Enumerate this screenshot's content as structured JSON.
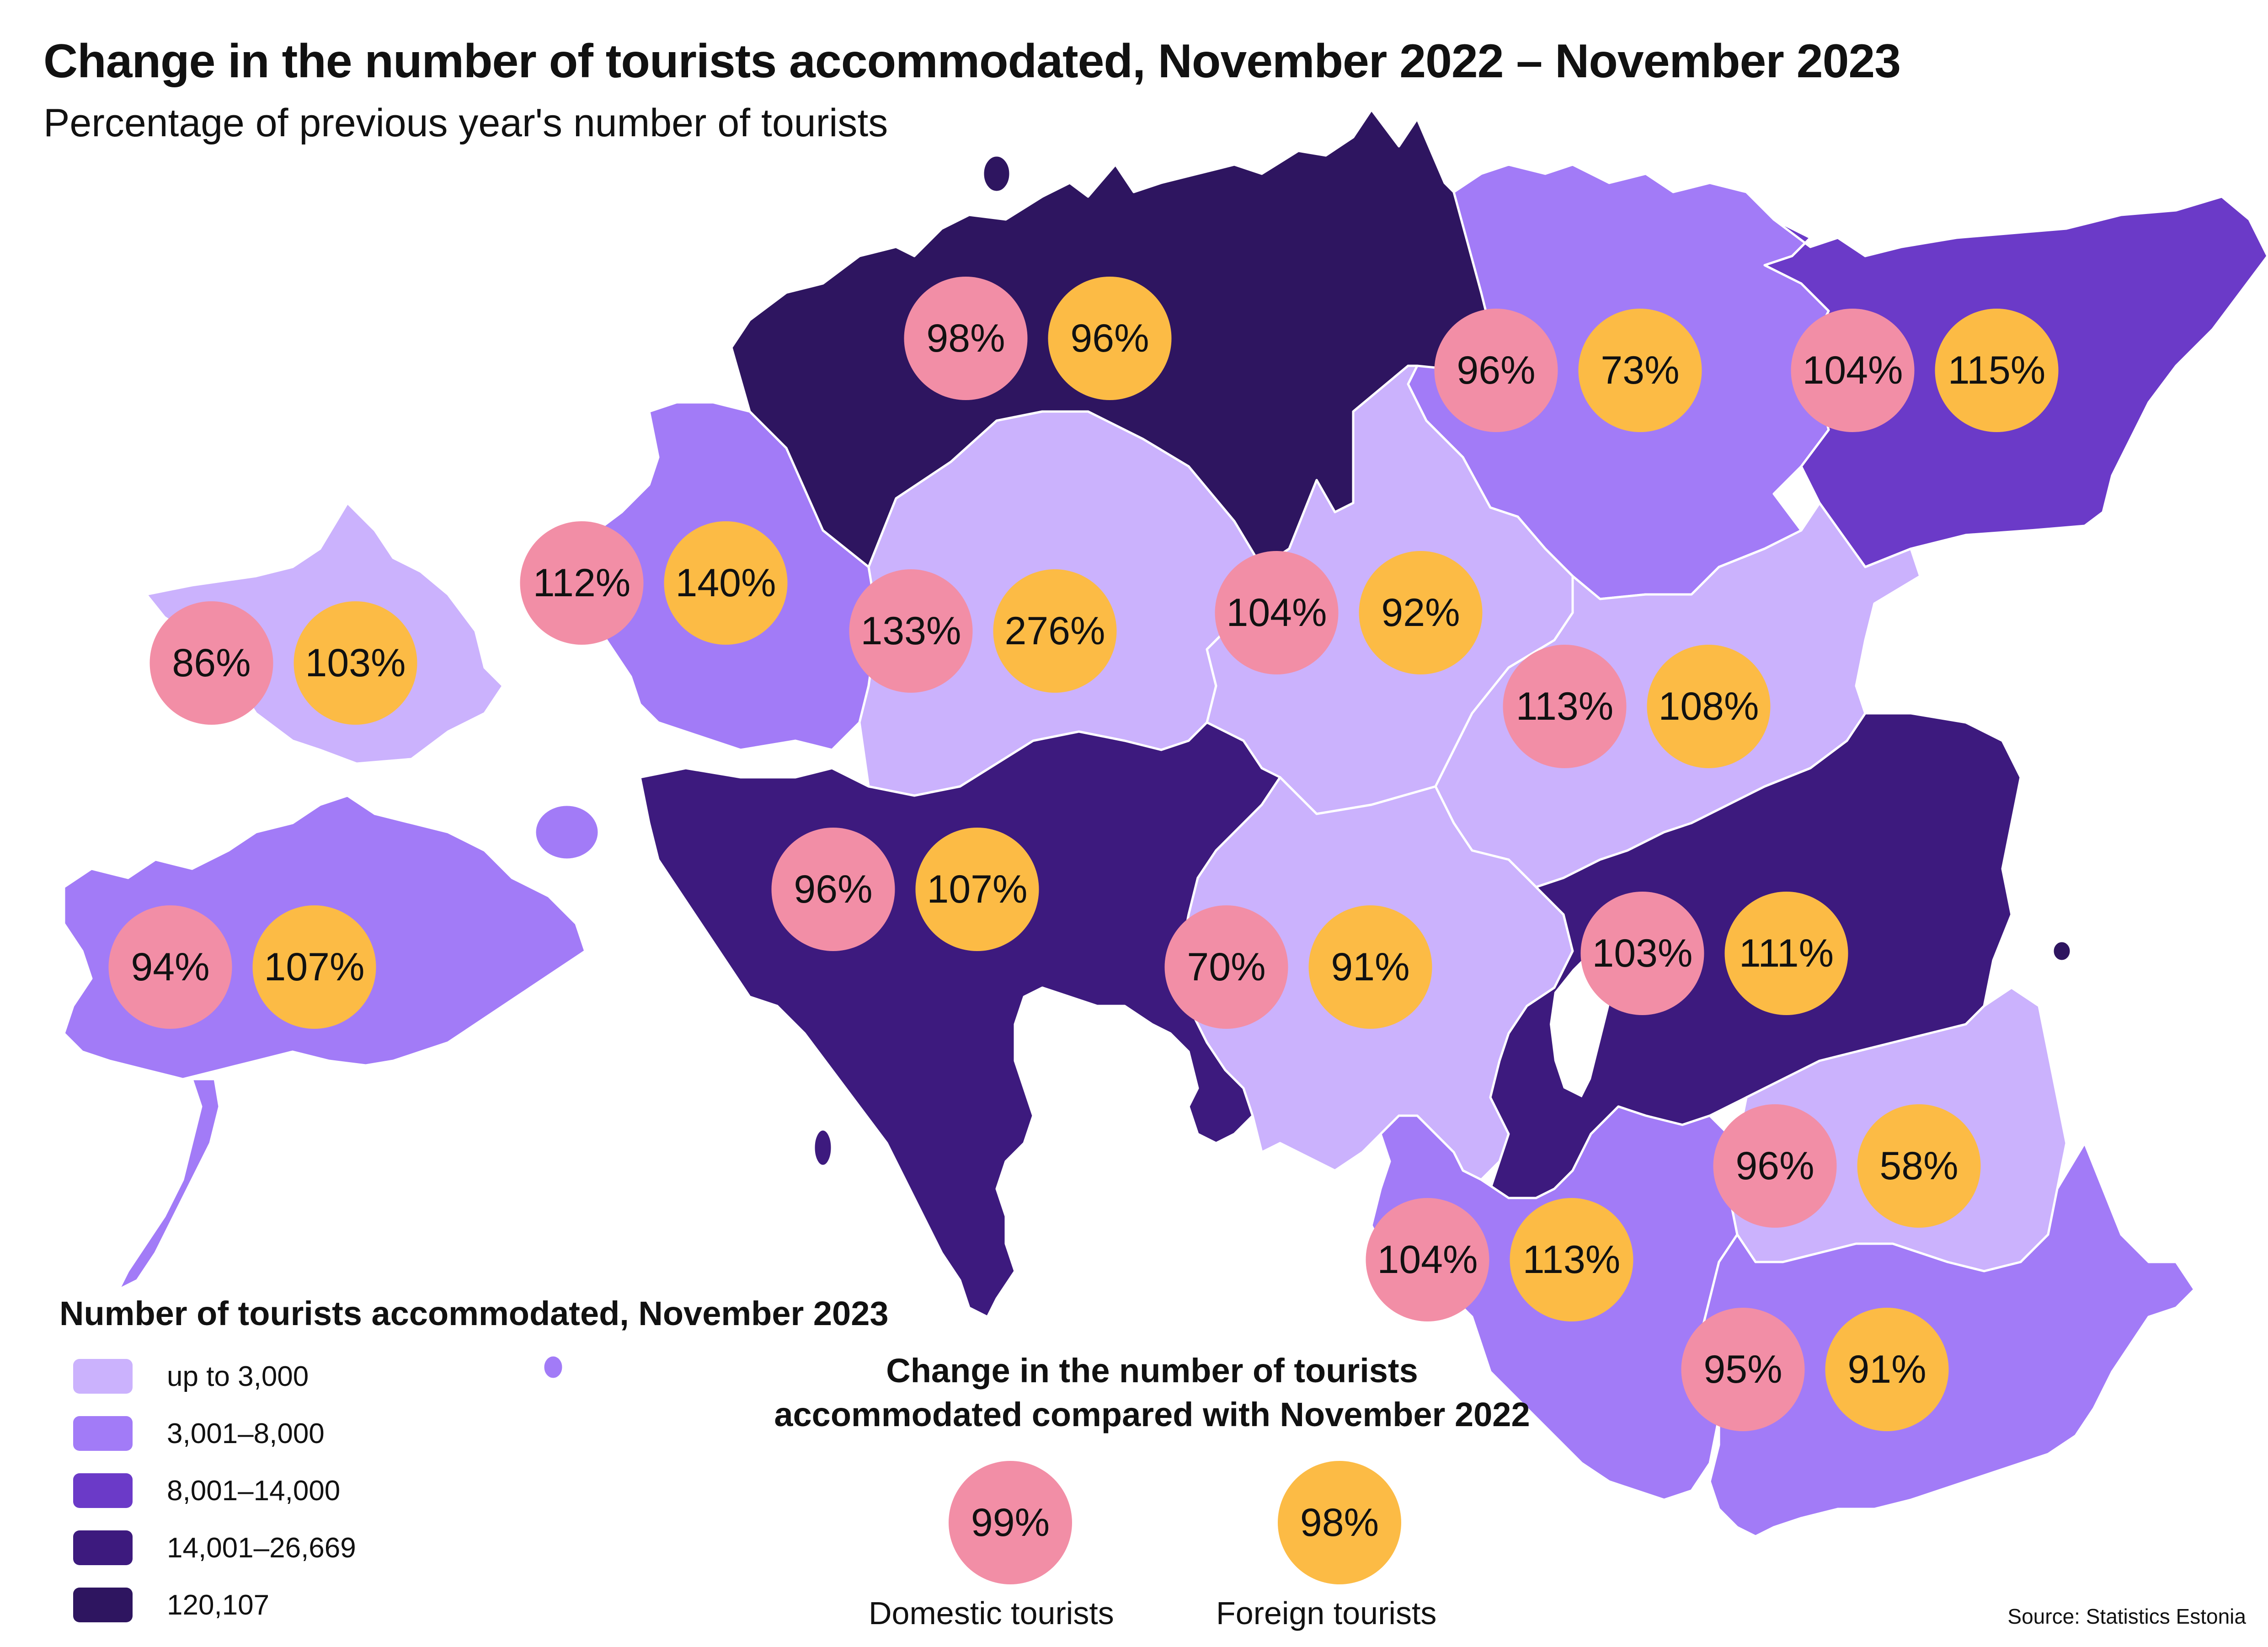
{
  "title": "Change in the number of tourists accommodated, November 2022 – November 2023",
  "subtitle": "Percentage of previous year's number of tourists",
  "colors": {
    "up_to_3000": "#cbb2fd",
    "3001_8000": "#a27bf7",
    "8001_14000": "#6b3ac8",
    "14001_26669": "#3d1a7e",
    "120107": "#2e1560",
    "domestic": "#f28ea6",
    "foreign": "#fcbb45",
    "water": "#ffffff"
  },
  "counties": [
    {
      "class": "120107",
      "domestic": "98%",
      "foreign": "96%"
    },
    {
      "class": "3001_8000",
      "domestic": "96%",
      "foreign": "73%"
    },
    {
      "class": "8001_14000",
      "domestic": "104%",
      "foreign": "115%"
    },
    {
      "class": "up_to_3000",
      "domestic": "86%",
      "foreign": "103%"
    },
    {
      "class": "3001_8000",
      "domestic": "112%",
      "foreign": "140%"
    },
    {
      "class": "up_to_3000",
      "domestic": "133%",
      "foreign": "276%"
    },
    {
      "class": "up_to_3000",
      "domestic": "104%",
      "foreign": "92%"
    },
    {
      "class": "up_to_3000",
      "domestic": "113%",
      "foreign": "108%"
    },
    {
      "class": "3001_8000",
      "domestic": "94%",
      "foreign": "107%"
    },
    {
      "class": "14001_26669",
      "domestic": "96%",
      "foreign": "107%"
    },
    {
      "class": "up_to_3000",
      "domestic": "70%",
      "foreign": "91%"
    },
    {
      "class": "14001_26669",
      "domestic": "103%",
      "foreign": "111%"
    },
    {
      "class": "up_to_3000",
      "domestic": "96%",
      "foreign": "58%"
    },
    {
      "class": "3001_8000",
      "domestic": "104%",
      "foreign": "113%"
    },
    {
      "class": "3001_8000",
      "domestic": "95%",
      "foreign": "91%"
    }
  ],
  "legend": {
    "title": "Number of tourists accommodated, November 2023",
    "items": [
      {
        "label": "up to 3,000",
        "class": "up_to_3000"
      },
      {
        "label": "3,001–8,000",
        "class": "3001_8000"
      },
      {
        "label": "8,001–14,000",
        "class": "8001_14000"
      },
      {
        "label": "14,001–26,669",
        "class": "14001_26669"
      },
      {
        "label": "120,107",
        "class": "120107"
      }
    ]
  },
  "change_key": {
    "title_line1": "Change in the number of tourists",
    "title_line2": "accommodated compared with November 2022",
    "domestic_value": "99%",
    "domestic_label": "Domestic tourists",
    "foreign_value": "98%",
    "foreign_label": "Foreign tourists"
  },
  "source": "Source: Statistics Estonia"
}
